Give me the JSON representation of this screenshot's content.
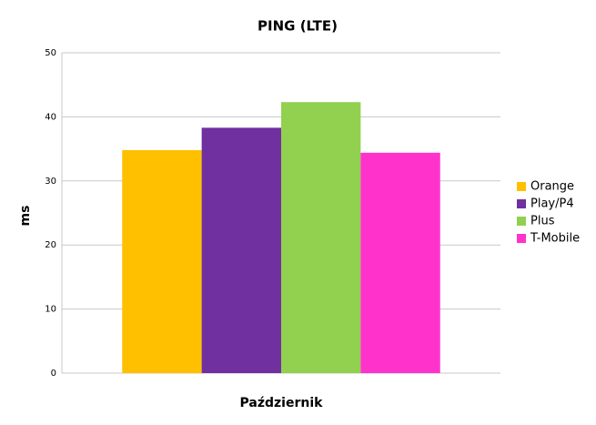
{
  "chart_data": {
    "type": "bar",
    "title": "PING (LTE)",
    "y_label": "ms",
    "categories": [
      "Październik"
    ],
    "series": [
      {
        "name": "Orange",
        "color": "#ffc000",
        "values": [
          34.8
        ]
      },
      {
        "name": "Play/P4",
        "color": "#7030a0",
        "values": [
          38.3
        ]
      },
      {
        "name": "Plus",
        "color": "#92d050",
        "values": [
          42.3
        ]
      },
      {
        "name": "T-Mobile",
        "color": "#ff33cc",
        "values": [
          34.4
        ]
      }
    ],
    "ylim": [
      0,
      50
    ],
    "yticks": [
      0,
      10,
      20,
      30,
      40,
      50
    ],
    "grid": true,
    "legend": "right"
  }
}
